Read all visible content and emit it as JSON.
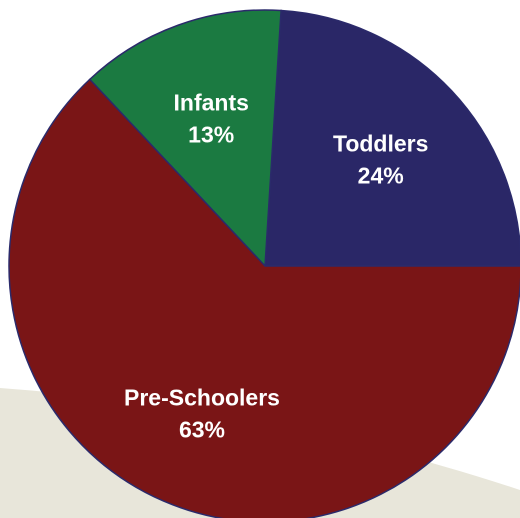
{
  "chart_data": {
    "type": "pie",
    "title": "",
    "start_angle_deg": 0,
    "direction": "counterclockwise",
    "slices": [
      {
        "label": "Toddlers",
        "value": 24,
        "value_label": "24%",
        "color": "#2a2767"
      },
      {
        "label": "Infants",
        "value": 13,
        "value_label": "13%",
        "color": "#1b7a41"
      },
      {
        "label": "Pre-Schoolers",
        "value": 63,
        "value_label": "63%",
        "color": "#7a1516"
      }
    ],
    "background_swoosh_color": "#e8e6da",
    "slice_border_color": "#2b2a6b"
  }
}
